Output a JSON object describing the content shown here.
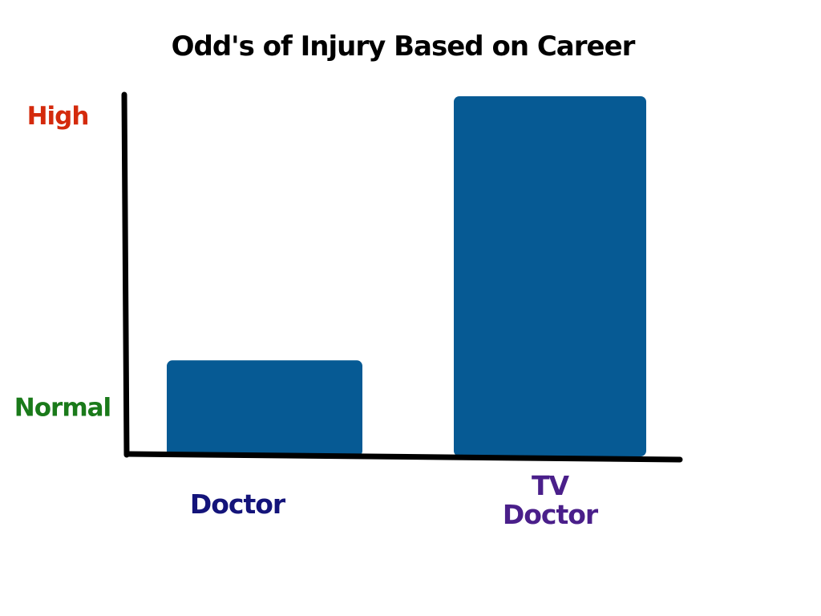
{
  "chart_data": {
    "type": "bar",
    "title": "Odd's of Injury Based on Career",
    "xlabel": "",
    "ylabel": "",
    "categories": [
      {
        "lines": [
          "Doctor"
        ],
        "color": "#14147a"
      },
      {
        "lines": [
          "TV",
          "Doctor"
        ],
        "color": "#4a1f8a"
      }
    ],
    "values": [
      0.26,
      1.0
    ],
    "ylim": [
      0,
      1
    ],
    "y_ticks": [
      {
        "label": "Normal",
        "value": 0.26,
        "color": "#1a7a1a"
      },
      {
        "label": "High",
        "value": 1.0,
        "color": "#d42a0c"
      }
    ],
    "bar_color": "#065a94",
    "grid": false,
    "legend": "none"
  }
}
